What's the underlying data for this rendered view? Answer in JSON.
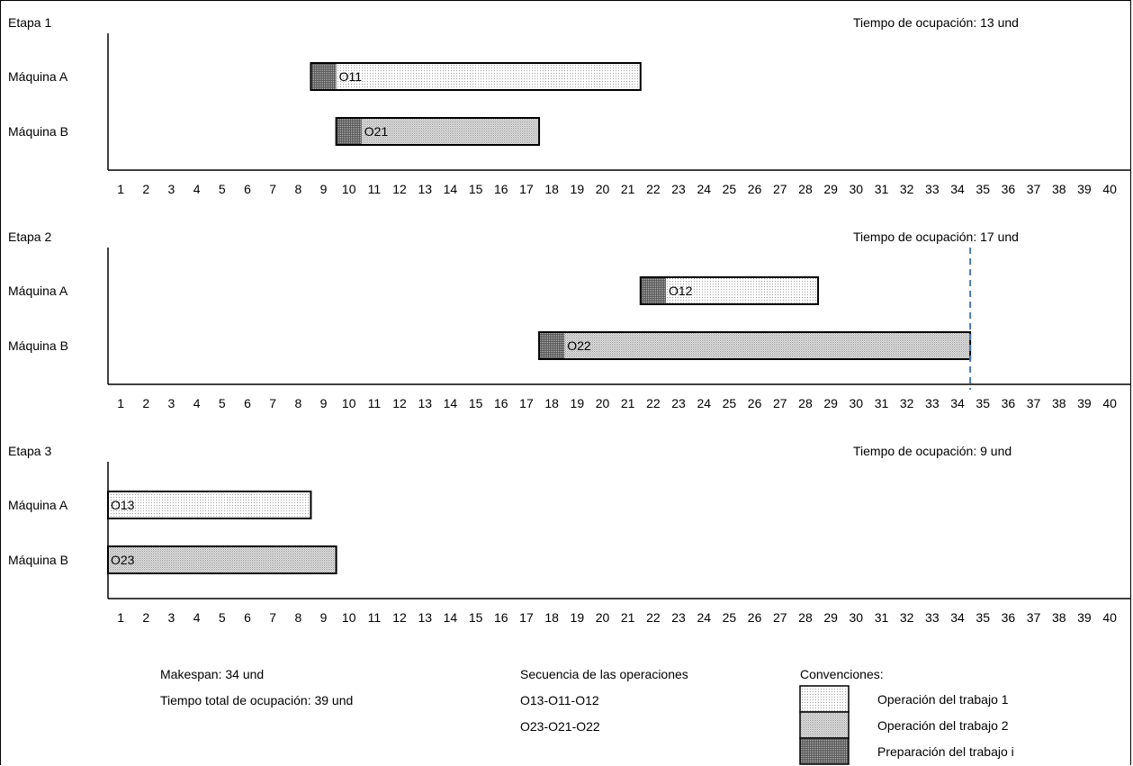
{
  "chart_data": {
    "type": "gantt",
    "xticks": [
      1,
      2,
      3,
      4,
      5,
      6,
      7,
      8,
      9,
      10,
      11,
      12,
      13,
      14,
      15,
      16,
      17,
      18,
      19,
      20,
      21,
      22,
      23,
      24,
      25,
      26,
      27,
      28,
      29,
      30,
      31,
      32,
      33,
      34,
      35,
      36,
      37,
      38,
      39,
      40
    ],
    "stages": [
      {
        "title": "Etapa 1",
        "occupancy": "Tiempo de ocupación: 13 und",
        "machines": [
          {
            "label": "Máquina A",
            "task": {
              "label": "O11",
              "job": 1,
              "setup_start": 8,
              "start": 9,
              "end": 21
            }
          },
          {
            "label": "Máquina B",
            "task": {
              "label": "O21",
              "job": 2,
              "setup_start": 9,
              "start": 10,
              "end": 17
            }
          }
        ],
        "marker": null
      },
      {
        "title": "Etapa 2",
        "occupancy": "Tiempo de ocupación: 17 und",
        "machines": [
          {
            "label": "Máquina A",
            "task": {
              "label": "O12",
              "job": 1,
              "setup_start": 21,
              "start": 22,
              "end": 28
            }
          },
          {
            "label": "Máquina B",
            "task": {
              "label": "O22",
              "job": 2,
              "setup_start": 17,
              "start": 18,
              "end": 34
            }
          }
        ],
        "marker": 34
      },
      {
        "title": "Etapa 3",
        "occupancy": "Tiempo de ocupación: 9 und",
        "machines": [
          {
            "label": "Máquina A",
            "task": {
              "label": "O13",
              "job": 1,
              "setup_start": null,
              "start": 0,
              "end": 8
            }
          },
          {
            "label": "Máquina B",
            "task": {
              "label": "O23",
              "job": 2,
              "setup_start": null,
              "start": 0,
              "end": 9
            }
          }
        ],
        "marker": null
      }
    ],
    "colors": {
      "job1": "#ececec",
      "job2": "#c8c8c8",
      "setup": "#8a8a8a",
      "marker": "#4a78b0"
    }
  },
  "summary": {
    "makespan": "Makespan: 34 und",
    "total_time": "Tiempo total de ocupación: 39 und"
  },
  "sequence": {
    "title": "Secuencia de las operaciones",
    "lines": [
      "O13-O11-O12",
      "O23-O21-O22"
    ]
  },
  "legend": {
    "title": "Convenciones:",
    "items": [
      {
        "label": "Operación del trabajo 1",
        "type": "job1"
      },
      {
        "label": "Operación del trabajo 2",
        "type": "job2"
      },
      {
        "label": "Preparación del trabajo i",
        "type": "setup"
      }
    ]
  }
}
